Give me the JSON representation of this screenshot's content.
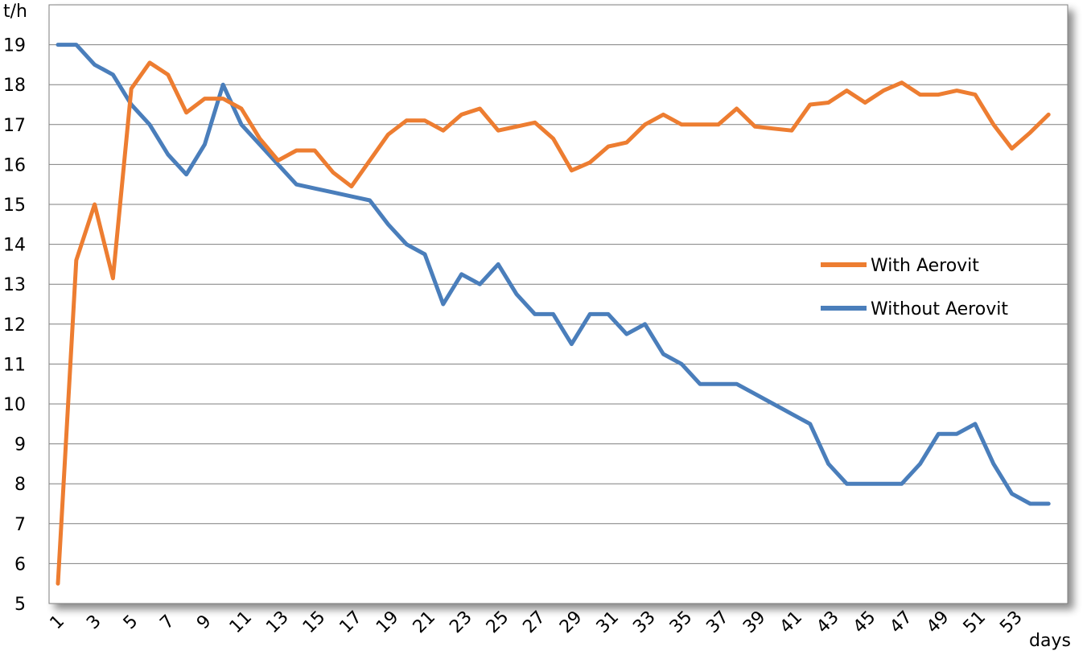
{
  "chart_data": {
    "type": "line",
    "ylabel": "t/h",
    "xlabel": "days",
    "ylim": [
      5,
      20
    ],
    "xlim": [
      1,
      56
    ],
    "y_ticks": [
      "5",
      "6",
      "7",
      "8",
      "9",
      "10",
      "11",
      "12",
      "13",
      "14",
      "15",
      "16",
      "17",
      "18",
      "19"
    ],
    "x_ticks": [
      "1",
      "3",
      "5",
      "7",
      "9",
      "11",
      "13",
      "15",
      "17",
      "19",
      "21",
      "23",
      "25",
      "27",
      "29",
      "31",
      "33",
      "35",
      "37",
      "39",
      "41",
      "43",
      "45",
      "47",
      "49",
      "51",
      "53"
    ],
    "x": [
      1,
      2,
      3,
      4,
      5,
      6,
      7,
      8,
      9,
      10,
      11,
      12,
      13,
      14,
      15,
      16,
      17,
      18,
      19,
      20,
      21,
      22,
      23,
      24,
      25,
      26,
      27,
      28,
      29,
      30,
      31,
      32,
      33,
      34,
      35,
      36,
      37,
      38,
      39,
      40,
      41,
      42,
      43,
      44,
      45,
      46,
      47,
      48,
      49,
      50,
      51,
      52,
      53,
      54,
      55
    ],
    "grid": true,
    "legend_position": "right",
    "series": [
      {
        "name": "With Aerovit",
        "color": "#ED7D31",
        "values": [
          5.5,
          13.6,
          15.0,
          13.15,
          17.9,
          18.55,
          18.25,
          17.3,
          17.65,
          17.65,
          17.4,
          16.65,
          16.1,
          16.35,
          16.35,
          15.8,
          15.45,
          16.1,
          16.75,
          17.1,
          17.1,
          16.85,
          17.25,
          17.4,
          16.85,
          16.95,
          17.05,
          16.65,
          15.85,
          16.05,
          16.45,
          16.55,
          17.0,
          17.25,
          17.0,
          17.0,
          17.0,
          17.4,
          16.95,
          16.9,
          16.85,
          17.5,
          17.55,
          17.85,
          17.55,
          17.85,
          18.05,
          17.75,
          17.75,
          17.85,
          17.75,
          17.0,
          16.4,
          16.8,
          17.25
        ]
      },
      {
        "name": "Without Aerovit",
        "color": "#4A7EBB",
        "values": [
          19.0,
          19.0,
          18.5,
          18.25,
          17.5,
          17.0,
          16.25,
          15.75,
          16.5,
          18.0,
          17.0,
          16.5,
          16.0,
          15.5,
          15.4,
          15.3,
          15.2,
          15.1,
          14.5,
          14.0,
          13.75,
          12.5,
          13.25,
          13.0,
          13.5,
          12.75,
          12.25,
          12.25,
          11.5,
          12.25,
          12.25,
          11.75,
          12.0,
          11.25,
          11.0,
          10.5,
          10.5,
          10.5,
          10.25,
          10.0,
          9.75,
          9.5,
          8.5,
          8.0,
          8.0,
          8.0,
          8.0,
          8.5,
          9.25,
          9.25,
          9.5,
          8.5,
          7.75,
          7.5,
          7.5
        ]
      }
    ]
  }
}
